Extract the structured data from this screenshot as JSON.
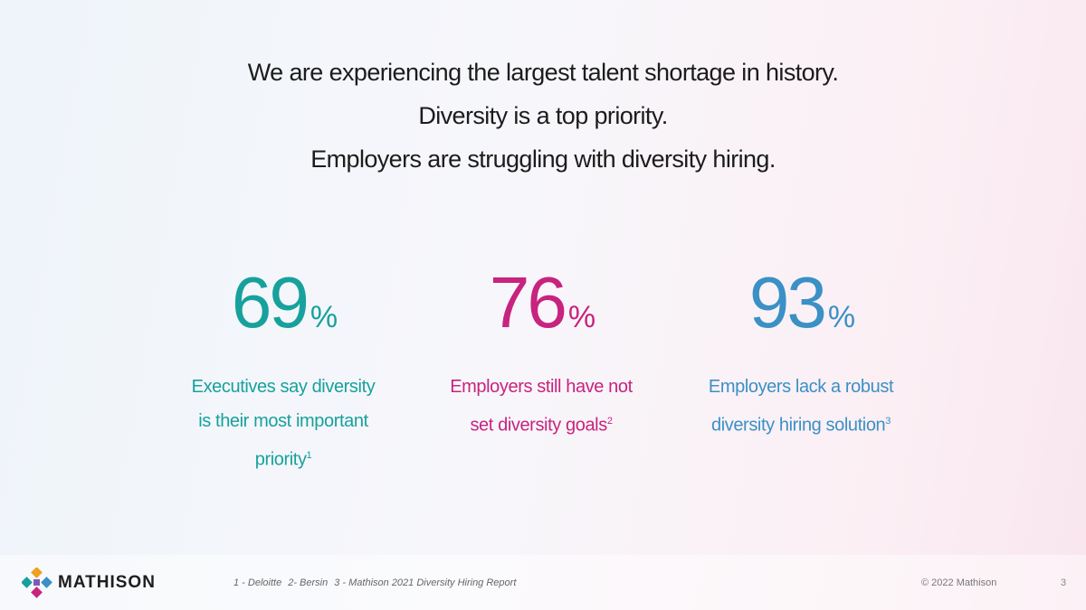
{
  "header": {
    "lines": [
      "We are experiencing the largest talent shortage in history.",
      "Diversity is a top priority.",
      "Employers are struggling with diversity hiring."
    ]
  },
  "stats": [
    {
      "value": 69,
      "unit": "%",
      "text": "Executives say diversity is their most important priority",
      "note": "1",
      "color": "#17a19c"
    },
    {
      "value": 76,
      "unit": "%",
      "text": "Employers still have not set diversity goals",
      "note": "2",
      "color": "#c8237f"
    },
    {
      "value": 93,
      "unit": "%",
      "text": "Employers lack a robust diversity hiring solution",
      "note": "3",
      "color": "#3b90c6"
    }
  ],
  "footer": {
    "brand": "MATHISON",
    "sources": [
      "1 - Deloitte",
      "2- Bersin",
      "3 - Mathison 2021 Diversity Hiring Report"
    ],
    "copyright": "© 2022 Mathison",
    "page": "3"
  }
}
